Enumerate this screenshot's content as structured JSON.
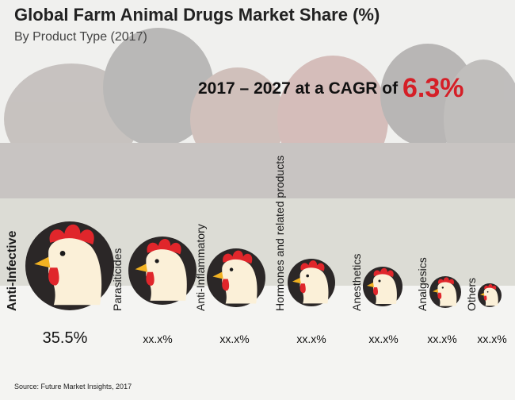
{
  "header": {
    "title": "Global Farm Animal Drugs Market Share (%)",
    "subtitle": "By Product Type (2017)"
  },
  "cagr": {
    "prefix": "2017 – 2027 at a CAGR of",
    "value": "6.3%"
  },
  "source": "Source: Future Market Insights, 2017",
  "icon": "chicken-head-icon",
  "colors": {
    "accent": "#d51f27",
    "icon_circle": "#2b2727",
    "comb": "#e0262b",
    "head": "#fbf0d8",
    "beak": "#f2b222"
  },
  "chart_data": {
    "type": "bubble",
    "title": "Global Farm Animal Drugs Market Share (%)",
    "subtitle": "By Product Type (2017)",
    "categories": [
      "Anti-Infective",
      "Parasiticides",
      "Anti-Inflammatory",
      "Hormones and related products",
      "Anesthetics",
      "Analgesics",
      "Others"
    ],
    "value_labels": [
      "35.5%",
      "xx.x%",
      "xx.x%",
      "xx.x%",
      "xx.x%",
      "xx.x%",
      "xx.x%"
    ],
    "values": [
      35.5,
      null,
      null,
      null,
      null,
      null,
      null
    ],
    "rank_order": "descending"
  }
}
